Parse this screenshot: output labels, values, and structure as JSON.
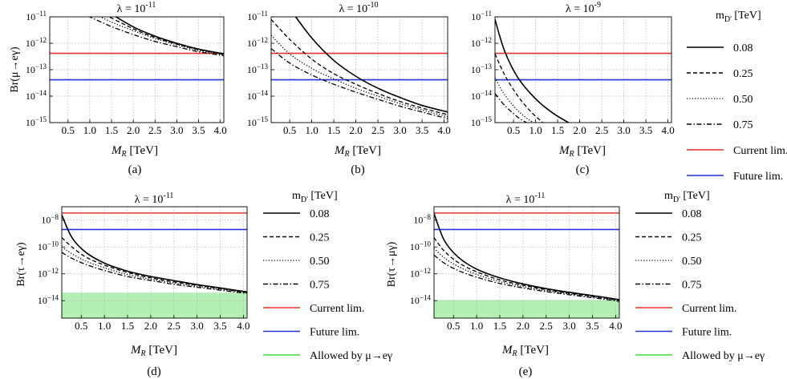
{
  "colors": {
    "current_limit": "#e8312f",
    "future_limit": "#2433d6",
    "allowed_region": "#b4f0b4",
    "grid": "#b5b5b5"
  },
  "legend_top": {
    "title": "m_{D'} [TeV]",
    "items": [
      {
        "label": "0.08",
        "style": "solid"
      },
      {
        "label": "0.25",
        "style": "dashed"
      },
      {
        "label": "0.50",
        "style": "dotted"
      },
      {
        "label": "0.75",
        "style": "dashdot"
      },
      {
        "label": "Current lim.",
        "style": "red"
      },
      {
        "label": "Future lim.",
        "style": "blue"
      }
    ]
  },
  "legend_bottom": {
    "title": "m_{D'} [TeV]",
    "items": [
      {
        "label": "0.08",
        "style": "solid"
      },
      {
        "label": "0.25",
        "style": "dashed"
      },
      {
        "label": "0.50",
        "style": "dotted"
      },
      {
        "label": "0.75",
        "style": "dashdot"
      },
      {
        "label": "Current lim.",
        "style": "red"
      },
      {
        "label": "Future lim.",
        "style": "blue"
      },
      {
        "label": "Allowed by μ→eγ",
        "style": "green"
      }
    ]
  },
  "chart_data": [
    {
      "id": "a",
      "type": "line",
      "caption": "(a)",
      "title": "λ = 10^{-11}",
      "xlabel": "M_R [TeV]",
      "ylabel": "Br(μ→eγ)",
      "ylog": true,
      "xlim": [
        0.08,
        4.08
      ],
      "ylim_exp": [
        -15,
        -11
      ],
      "xticks": [
        "0.5",
        "1.0",
        "1.5",
        "2.0",
        "2.5",
        "3.0",
        "3.5",
        "4.0"
      ],
      "yticks": [
        "10^-11",
        "10^-12",
        "10^-13",
        "10^-14",
        "10^-15"
      ],
      "current_limit_exp": -12.38,
      "future_limit_exp": -13.38,
      "series": [
        {
          "name": "0.08",
          "style": "solid",
          "x": [
            1.4,
            2.0,
            2.5,
            3.0,
            3.5,
            4.08
          ],
          "log10_y": [
            -10.8,
            -11.38,
            -11.73,
            -12.0,
            -12.22,
            -12.4
          ]
        },
        {
          "name": "0.25",
          "style": "dashed",
          "x": [
            1.2,
            2.0,
            2.5,
            3.0,
            3.5,
            4.08
          ],
          "log10_y": [
            -10.8,
            -11.45,
            -11.78,
            -12.03,
            -12.24,
            -12.42
          ]
        },
        {
          "name": "0.50",
          "style": "dotted",
          "x": [
            1.0,
            1.5,
            2.0,
            2.5,
            3.0,
            3.5,
            4.08
          ],
          "log10_y": [
            -10.8,
            -11.2,
            -11.52,
            -11.82,
            -12.06,
            -12.27,
            -12.44
          ]
        },
        {
          "name": "0.75",
          "style": "dashdot",
          "x": [
            0.75,
            1.0,
            1.5,
            2.0,
            2.5,
            3.0,
            3.5,
            4.08
          ],
          "log10_y": [
            -10.8,
            -11.0,
            -11.37,
            -11.67,
            -11.93,
            -12.13,
            -12.32,
            -12.47
          ]
        }
      ]
    },
    {
      "id": "b",
      "type": "line",
      "caption": "(b)",
      "title": "λ = 10^{-10}",
      "xlabel": "M_R [TeV]",
      "ylabel": "",
      "ylog": true,
      "xlim": [
        0.08,
        4.08
      ],
      "ylim_exp": [
        -15,
        -11
      ],
      "xticks": [
        "0.5",
        "1.0",
        "1.5",
        "2.0",
        "2.5",
        "3.0",
        "3.5",
        "4.0"
      ],
      "yticks": [
        "10^-11",
        "10^-12",
        "10^-13",
        "10^-14",
        "10^-15"
      ],
      "current_limit_exp": -12.38,
      "future_limit_exp": -13.38,
      "series": [
        {
          "name": "0.08",
          "style": "solid",
          "x": [
            0.55,
            1.0,
            1.5,
            2.0,
            2.5,
            3.0,
            3.5,
            4.08
          ],
          "log10_y": [
            -10.8,
            -11.8,
            -12.65,
            -13.25,
            -13.7,
            -14.05,
            -14.35,
            -14.6
          ]
        },
        {
          "name": "0.25",
          "style": "dashed",
          "x": [
            0.08,
            0.5,
            1.0,
            1.5,
            2.0,
            2.5,
            3.0,
            3.5,
            4.08
          ],
          "log10_y": [
            -11.1,
            -11.85,
            -12.6,
            -13.15,
            -13.55,
            -13.9,
            -14.2,
            -14.45,
            -14.7
          ]
        },
        {
          "name": "0.50",
          "style": "dotted",
          "x": [
            0.08,
            0.5,
            1.0,
            1.5,
            2.0,
            2.5,
            3.0,
            3.5,
            4.08
          ],
          "log10_y": [
            -11.7,
            -12.4,
            -12.95,
            -13.35,
            -13.7,
            -14.0,
            -14.28,
            -14.52,
            -14.78
          ]
        },
        {
          "name": "0.75",
          "style": "dashdot",
          "x": [
            0.08,
            0.5,
            1.0,
            1.5,
            2.0,
            2.5,
            3.0,
            3.5,
            4.08
          ],
          "log10_y": [
            -12.2,
            -12.75,
            -13.2,
            -13.55,
            -13.85,
            -14.12,
            -14.38,
            -14.6,
            -14.85
          ]
        }
      ]
    },
    {
      "id": "c",
      "type": "line",
      "caption": "(c)",
      "title": "λ = 10^{-9}",
      "xlabel": "M_R [TeV]",
      "ylabel": "",
      "ylog": true,
      "xlim": [
        0.08,
        4.08
      ],
      "ylim_exp": [
        -15,
        -11
      ],
      "xticks": [
        "0.5",
        "1.0",
        "1.5",
        "2.0",
        "2.5",
        "3.0",
        "3.5",
        "4.0"
      ],
      "yticks": [
        "10^-11",
        "10^-12",
        "10^-13",
        "10^-14",
        "10^-15"
      ],
      "current_limit_exp": -12.38,
      "future_limit_exp": -13.38,
      "series": [
        {
          "name": "0.08",
          "style": "solid",
          "x": [
            0.08,
            0.3,
            0.6,
            1.0,
            1.4,
            1.8
          ],
          "log10_y": [
            -11.1,
            -12.3,
            -13.3,
            -14.1,
            -14.65,
            -15.05
          ]
        },
        {
          "name": "0.25",
          "style": "dashed",
          "x": [
            0.08,
            0.3,
            0.6,
            0.9,
            1.2
          ],
          "log10_y": [
            -12.4,
            -13.2,
            -14.0,
            -14.6,
            -15.05
          ]
        },
        {
          "name": "0.50",
          "style": "dotted",
          "x": [
            0.08,
            0.3,
            0.6,
            0.9,
            1.05
          ],
          "log10_y": [
            -13.3,
            -13.95,
            -14.55,
            -14.95,
            -15.05
          ]
        },
        {
          "name": "0.75",
          "style": "dashdot",
          "x": [
            0.08,
            0.3,
            0.6,
            0.85
          ],
          "log10_y": [
            -13.9,
            -14.35,
            -14.8,
            -15.05
          ]
        }
      ]
    },
    {
      "id": "d",
      "type": "line",
      "caption": "(d)",
      "title": "λ = 10^{-11}",
      "xlabel": "M_R [TeV]",
      "ylabel": "Br(τ→eγ)",
      "ylog": true,
      "xlim": [
        0.08,
        4.08
      ],
      "ylim_exp": [
        -15.3,
        -7
      ],
      "xticks": [
        "0.5",
        "1.0",
        "1.5",
        "2.0",
        "2.5",
        "3.0",
        "3.5",
        "4.0"
      ],
      "yticks": [
        "10^-8",
        "10^-10",
        "10^-12",
        "10^-14"
      ],
      "current_limit_exp": -7.47,
      "future_limit_exp": -8.7,
      "allowed_max_exp": -13.4,
      "series": [
        {
          "name": "0.08",
          "style": "solid",
          "x": [
            0.08,
            0.3,
            0.6,
            1.0,
            1.5,
            2.0,
            2.5,
            3.0,
            3.5,
            4.08
          ],
          "log10_y": [
            -7.6,
            -9.3,
            -10.4,
            -11.2,
            -11.8,
            -12.2,
            -12.5,
            -12.8,
            -13.05,
            -13.35
          ]
        },
        {
          "name": "0.25",
          "style": "dashed",
          "x": [
            0.08,
            0.3,
            0.6,
            1.0,
            1.5,
            2.0,
            2.5,
            3.0,
            3.5,
            4.08
          ],
          "log10_y": [
            -9.3,
            -10.0,
            -10.75,
            -11.35,
            -11.9,
            -12.3,
            -12.6,
            -12.85,
            -13.1,
            -13.38
          ]
        },
        {
          "name": "0.50",
          "style": "dotted",
          "x": [
            0.08,
            0.3,
            0.6,
            1.0,
            1.5,
            2.0,
            2.5,
            3.0,
            3.5,
            4.08
          ],
          "log10_y": [
            -10.0,
            -10.5,
            -11.05,
            -11.55,
            -12.05,
            -12.4,
            -12.68,
            -12.92,
            -13.15,
            -13.42
          ]
        },
        {
          "name": "0.75",
          "style": "dashdot",
          "x": [
            0.08,
            0.3,
            0.6,
            1.0,
            1.5,
            2.0,
            2.5,
            3.0,
            3.5,
            4.08
          ],
          "log10_y": [
            -10.4,
            -10.85,
            -11.3,
            -11.75,
            -12.2,
            -12.5,
            -12.78,
            -13.0,
            -13.22,
            -13.46
          ]
        }
      ]
    },
    {
      "id": "e",
      "type": "line",
      "caption": "(e)",
      "title": "λ = 10^{-11}",
      "xlabel": "M_R [TeV]",
      "ylabel": "Br(τ→μγ)",
      "ylog": true,
      "xlim": [
        0.08,
        4.08
      ],
      "ylim_exp": [
        -15.3,
        -7
      ],
      "xticks": [
        "0.5",
        "1.0",
        "1.5",
        "2.0",
        "2.5",
        "3.0",
        "3.5",
        "4.0"
      ],
      "yticks": [
        "10^-8",
        "10^-10",
        "10^-12",
        "10^-14"
      ],
      "current_limit_exp": -7.47,
      "future_limit_exp": -8.7,
      "allowed_max_exp": -13.95,
      "series": [
        {
          "name": "0.08",
          "style": "solid",
          "x": [
            0.08,
            0.3,
            0.6,
            1.0,
            1.5,
            2.0,
            2.5,
            3.0,
            3.5,
            4.08
          ],
          "log10_y": [
            -7.5,
            -9.5,
            -10.75,
            -11.65,
            -12.3,
            -12.75,
            -13.1,
            -13.38,
            -13.62,
            -13.92
          ]
        },
        {
          "name": "0.25",
          "style": "dashed",
          "x": [
            0.08,
            0.3,
            0.6,
            1.0,
            1.5,
            2.0,
            2.5,
            3.0,
            3.5,
            4.08
          ],
          "log10_y": [
            -9.3,
            -10.3,
            -11.15,
            -11.85,
            -12.45,
            -12.85,
            -13.18,
            -13.45,
            -13.68,
            -13.96
          ]
        },
        {
          "name": "0.50",
          "style": "dotted",
          "x": [
            0.08,
            0.3,
            0.6,
            1.0,
            1.5,
            2.0,
            2.5,
            3.0,
            3.5,
            4.08
          ],
          "log10_y": [
            -10.1,
            -10.8,
            -11.45,
            -12.05,
            -12.58,
            -12.95,
            -13.25,
            -13.5,
            -13.72,
            -14.0
          ]
        },
        {
          "name": "0.75",
          "style": "dashdot",
          "x": [
            0.08,
            0.3,
            0.6,
            1.0,
            1.5,
            2.0,
            2.5,
            3.0,
            3.5,
            4.08
          ],
          "log10_y": [
            -10.6,
            -11.2,
            -11.75,
            -12.25,
            -12.72,
            -13.05,
            -13.33,
            -13.56,
            -13.78,
            -14.05
          ]
        }
      ]
    }
  ]
}
